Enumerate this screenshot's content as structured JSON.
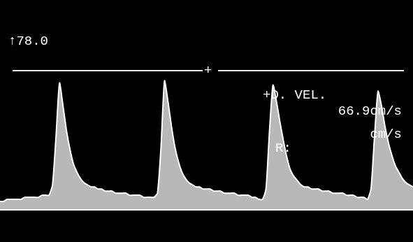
{
  "chart_data": {
    "type": "line",
    "categories": [
      null,
      null,
      null,
      null,
      null,
      null,
      null,
      null,
      null,
      null,
      null,
      null,
      null,
      null,
      null,
      null,
      null,
      null,
      null,
      null,
      null,
      null,
      null,
      null,
      null,
      null,
      null,
      null,
      null,
      null,
      null,
      null,
      null,
      null,
      null,
      null,
      null,
      null,
      null,
      null,
      null,
      null,
      null,
      null,
      null,
      null,
      null,
      null,
      null,
      null,
      null,
      null,
      null,
      null,
      null,
      null,
      null,
      null,
      null,
      null,
      null,
      null,
      null,
      null,
      null,
      null,
      null,
      null,
      null,
      null,
      null,
      null,
      null,
      null,
      null,
      null,
      null,
      null,
      null,
      null,
      null,
      null,
      null,
      null,
      null,
      null,
      null,
      null,
      null,
      null,
      null,
      null,
      null,
      null,
      null,
      null,
      null,
      null,
      null,
      null,
      null,
      null,
      null,
      null,
      null,
      null,
      null,
      null,
      null,
      null,
      null,
      null,
      null,
      null,
      null,
      null,
      null,
      null,
      null
    ],
    "values": [
      4,
      4,
      5,
      5,
      5,
      5,
      5,
      6,
      6,
      6,
      6,
      6,
      7,
      7,
      7,
      12,
      35,
      61,
      50,
      38,
      29,
      22,
      18,
      15,
      13,
      12,
      11,
      11,
      10,
      10,
      9,
      9,
      9,
      8,
      8,
      8,
      8,
      7,
      7,
      7,
      7,
      6,
      6,
      6,
      6,
      8,
      30,
      62,
      52,
      40,
      30,
      23,
      18,
      15,
      13,
      12,
      11,
      11,
      10,
      10,
      10,
      9,
      9,
      9,
      8,
      8,
      8,
      8,
      7,
      7,
      7,
      7,
      6,
      6,
      5,
      5,
      10,
      38,
      60,
      52,
      42,
      33,
      25,
      19,
      16,
      14,
      12,
      11,
      11,
      10,
      10,
      10,
      9,
      9,
      9,
      8,
      8,
      8,
      8,
      7,
      7,
      7,
      6,
      6,
      6,
      5,
      10,
      35,
      57,
      50,
      40,
      32,
      26,
      21,
      18,
      15,
      13,
      12,
      11
    ],
    "color": "#ffffff",
    "ylim": [
      -15.5,
      100.9
    ],
    "yticks": [
      0
    ],
    "grid": true,
    "tick_labels": false,
    "scale_label": "↑78.0",
    "cursor": {
      "value": 66.9,
      "label": "66.9cm/s",
      "marker": "+"
    },
    "annotations": [
      "+D. VEL.",
      "cm/s",
      "R:"
    ]
  }
}
